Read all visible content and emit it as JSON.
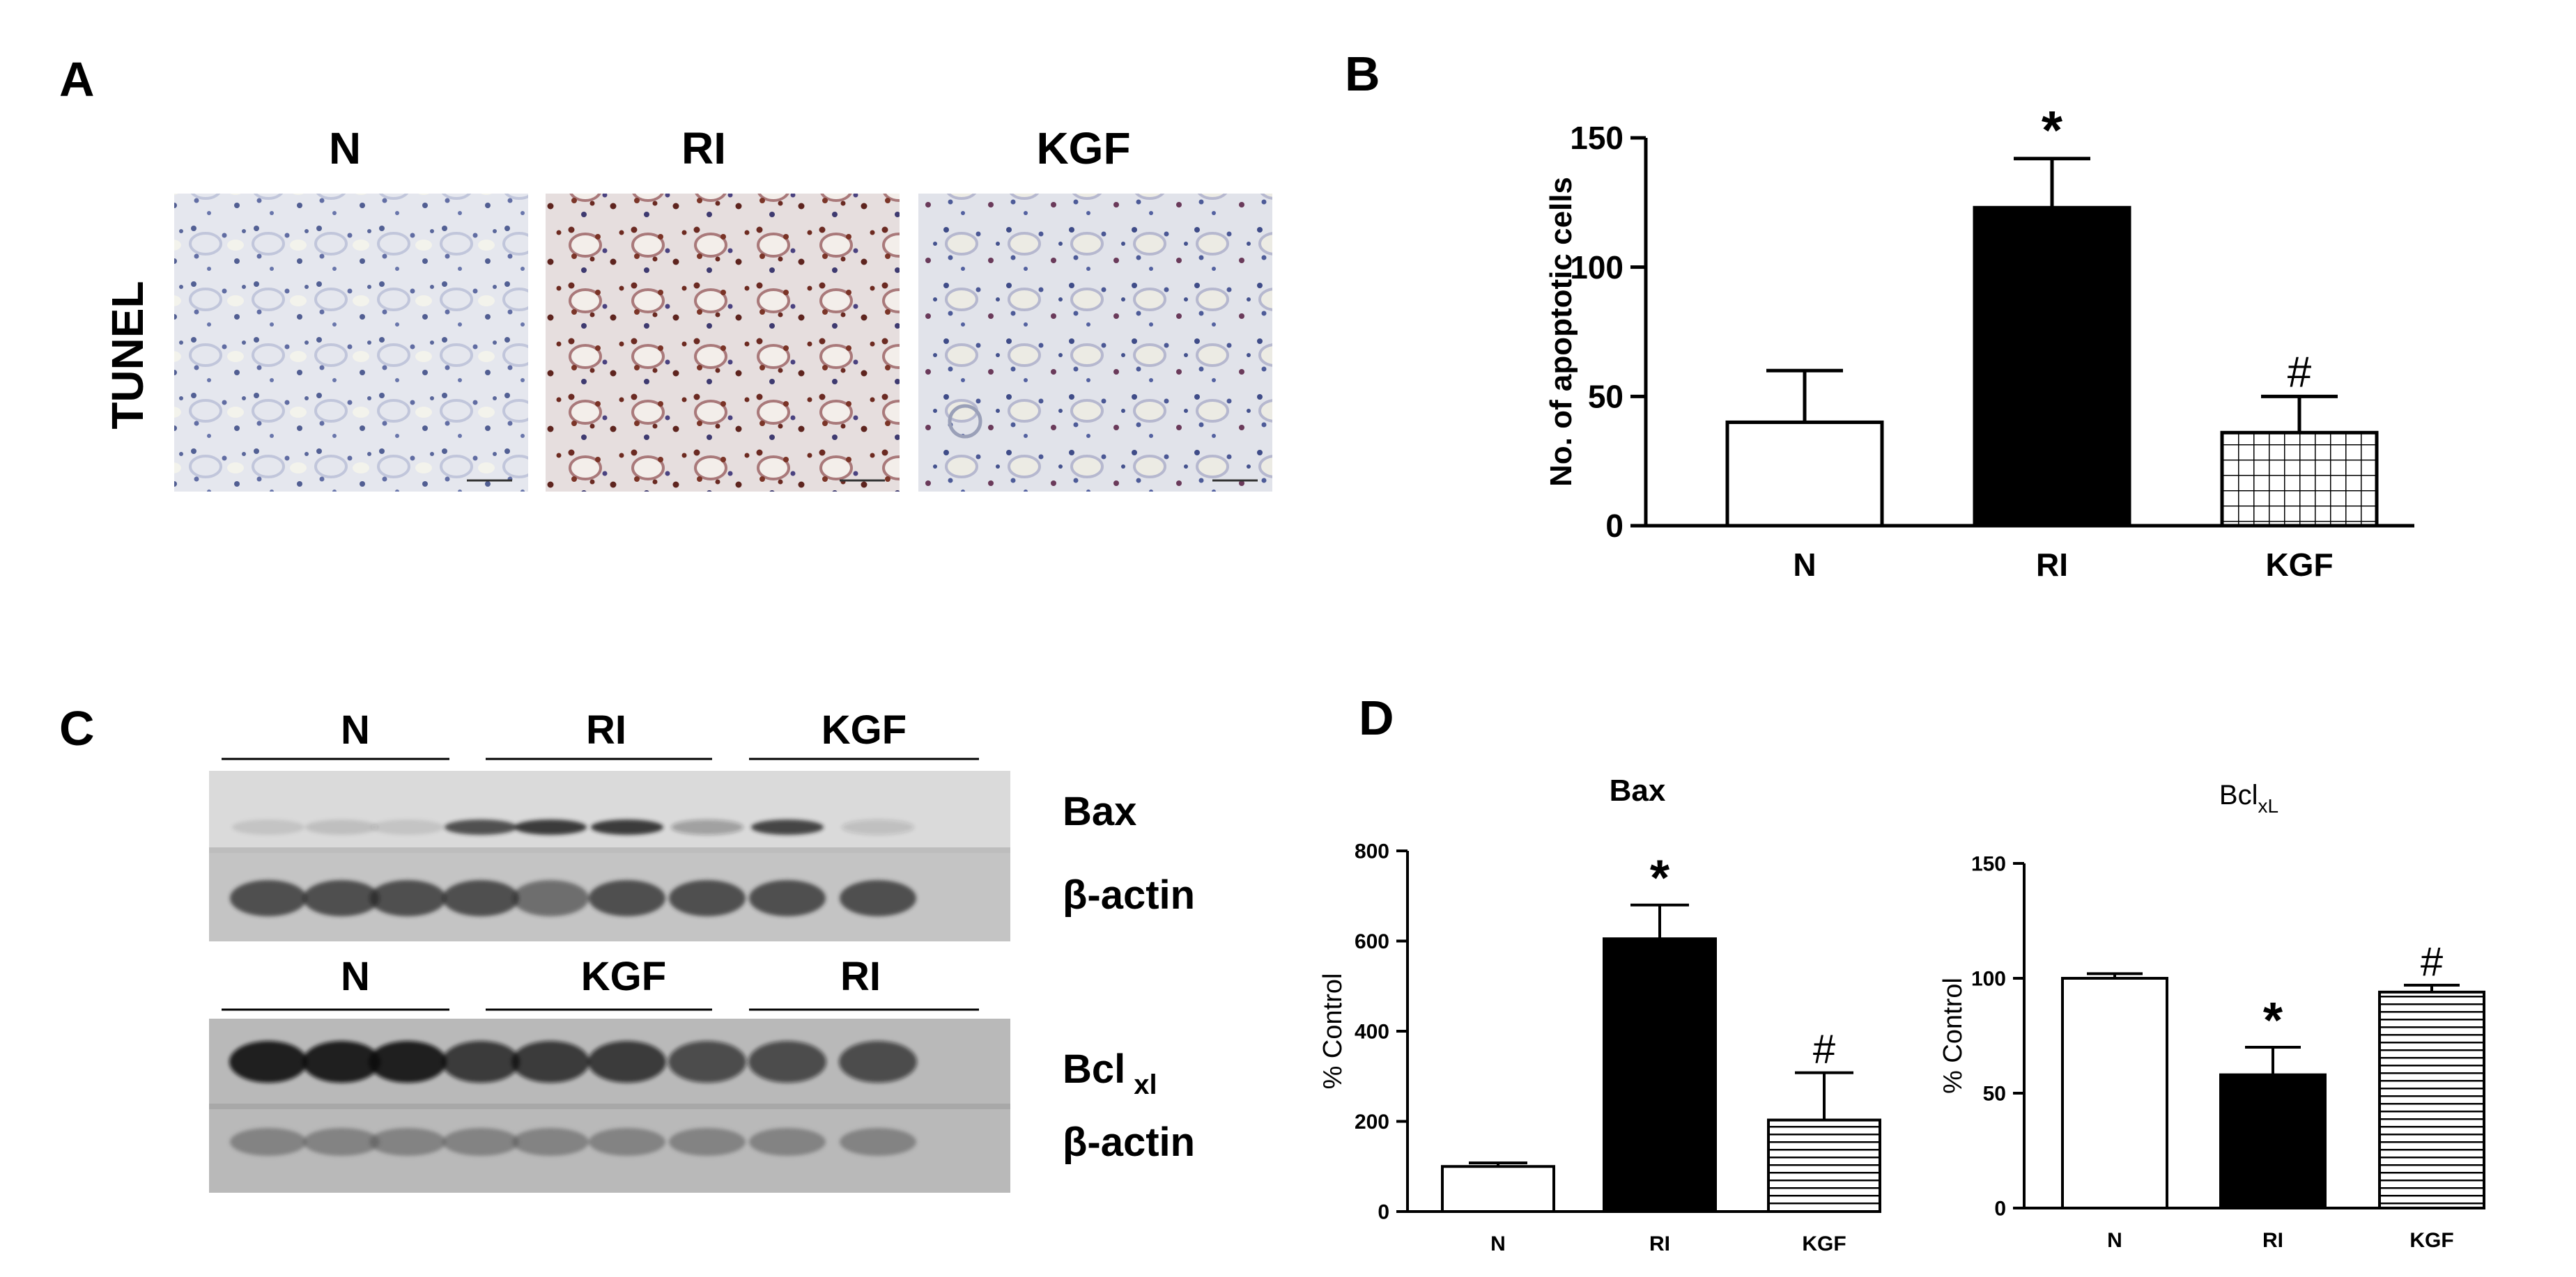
{
  "panel_a": {
    "letter": "A",
    "side_label": "TUNEL",
    "columns": [
      "N",
      "RI",
      "KGF"
    ]
  },
  "panel_c": {
    "letter": "C",
    "blot1": {
      "groups": [
        "N",
        "RI",
        "KGF"
      ],
      "labels": {
        "top": "Bax",
        "bottom": "β-actin"
      }
    },
    "blot2": {
      "groups": [
        "N",
        "KGF",
        "RI"
      ],
      "labels": {
        "top_main": "Bcl",
        "top_sub": "xl",
        "bottom": "β-actin"
      }
    }
  },
  "panel_d": {
    "letter": "D"
  },
  "chart_data": [
    {
      "panel": "B",
      "type": "bar",
      "categories": [
        "N",
        "RI",
        "KGF"
      ],
      "values": [
        40,
        123,
        36
      ],
      "errors": [
        20,
        19,
        14
      ],
      "annotations": [
        "",
        "*",
        "#"
      ],
      "ylabel": "No. of apoptotic cells",
      "yticks": [
        0,
        50,
        100,
        150
      ],
      "ylim": [
        0,
        150
      ],
      "fills": [
        "white",
        "black",
        "grid"
      ],
      "grid": false
    },
    {
      "panel": "D-left",
      "type": "bar",
      "title": "Bax",
      "categories": [
        "N",
        "RI",
        "KGF"
      ],
      "values": [
        100,
        605,
        203
      ],
      "errors": [
        8,
        75,
        105
      ],
      "annotations": [
        "",
        "*",
        "#"
      ],
      "ylabel": "% Control",
      "yticks": [
        0,
        200,
        400,
        600,
        800
      ],
      "ylim": [
        0,
        800
      ],
      "fills": [
        "white",
        "black",
        "hlines"
      ],
      "grid": false
    },
    {
      "panel": "D-right",
      "type": "bar",
      "title_main": "Bcl",
      "title_sub": "xL",
      "categories": [
        "N",
        "RI",
        "KGF"
      ],
      "values": [
        100,
        58,
        94
      ],
      "errors": [
        2,
        12,
        3
      ],
      "annotations": [
        "",
        "*",
        "#"
      ],
      "ylabel": "% Control",
      "yticks": [
        0,
        50,
        100,
        150
      ],
      "ylim": [
        0,
        150
      ],
      "fills": [
        "white",
        "black",
        "hlines"
      ],
      "grid": false
    }
  ]
}
